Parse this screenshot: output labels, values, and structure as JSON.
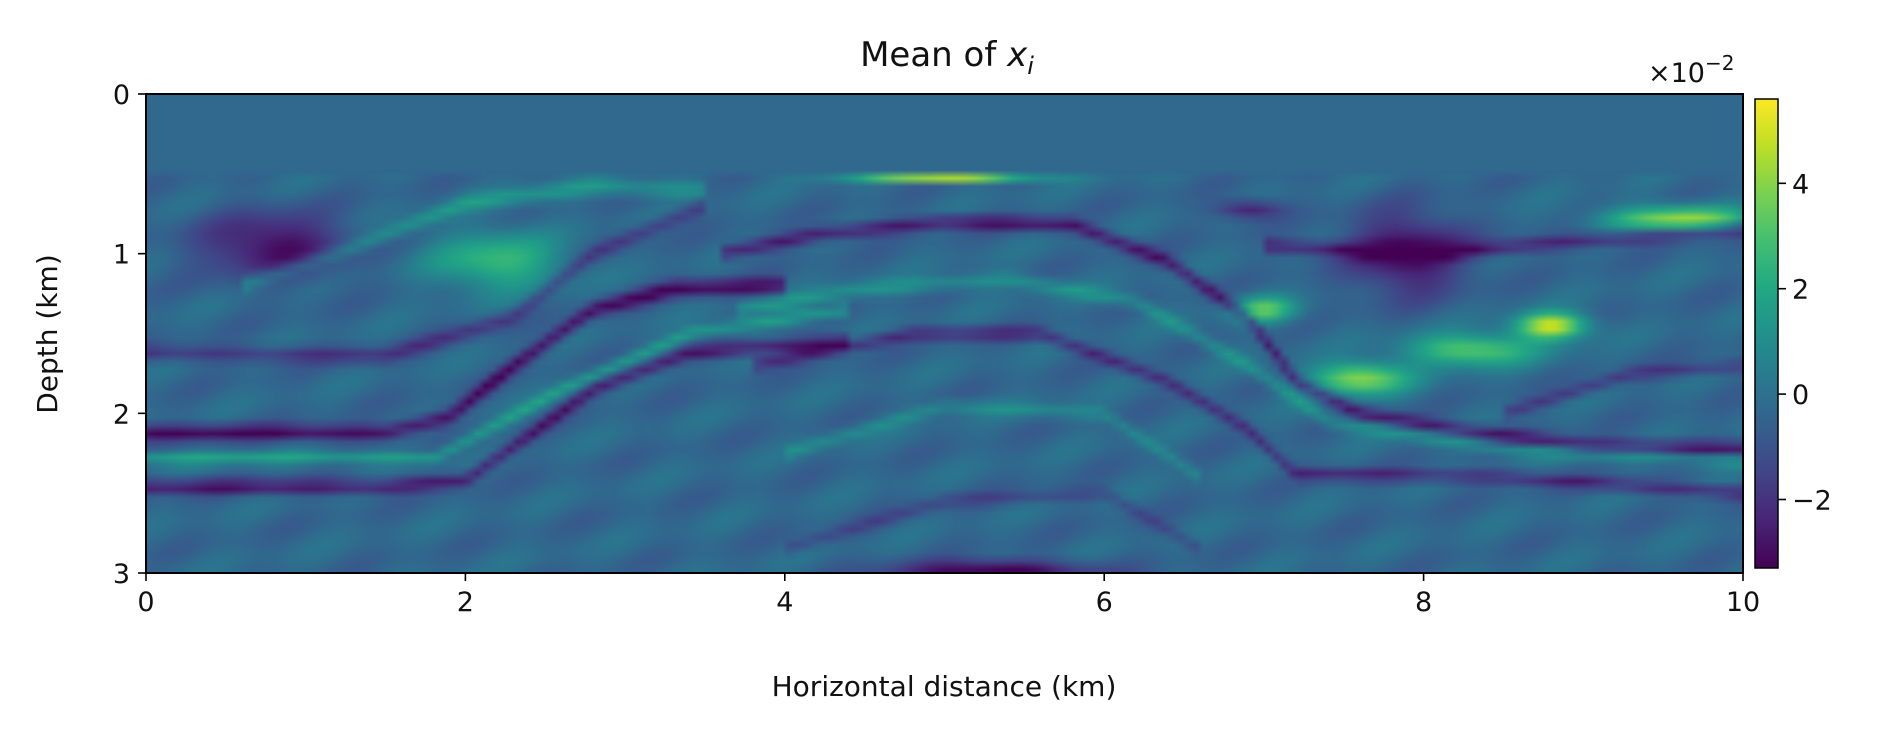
{
  "chart_data": {
    "type": "heatmap",
    "title_prefix": "Mean of ",
    "title_var": "x",
    "title_sub": "i",
    "xlabel": "Horizontal distance (km)",
    "ylabel": "Depth (km)",
    "xlim": [
      0,
      10
    ],
    "ylim": [
      0,
      3
    ],
    "y_inverted": true,
    "x_ticks": [
      {
        "value": 0,
        "label": "0"
      },
      {
        "value": 2,
        "label": "2"
      },
      {
        "value": 4,
        "label": "4"
      },
      {
        "value": 6,
        "label": "6"
      },
      {
        "value": 8,
        "label": "8"
      },
      {
        "value": 10,
        "label": "10"
      }
    ],
    "y_ticks": [
      {
        "value": 0,
        "label": "0"
      },
      {
        "value": 1,
        "label": "1"
      },
      {
        "value": 2,
        "label": "2"
      },
      {
        "value": 3,
        "label": "3"
      }
    ],
    "colorbar": {
      "colormap": "viridis",
      "range": [
        -3.3,
        5.6
      ],
      "scale_base": "×10",
      "scale_exp": "−2",
      "ticks": [
        {
          "value": 4,
          "label": "4"
        },
        {
          "value": 2,
          "label": "2"
        },
        {
          "value": 0,
          "label": "0"
        },
        {
          "value": -2,
          "label": "−2"
        }
      ]
    },
    "background_value": -0.3,
    "water_depth": 0.5,
    "reflectors": [
      {
        "name": "R1",
        "points": [
          [
            0,
            1.62
          ],
          [
            1.5,
            1.64
          ],
          [
            2.3,
            1.4
          ],
          [
            2.8,
            1.0
          ],
          [
            3.5,
            0.7
          ]
        ],
        "amp": -1.6,
        "width": 0.05
      },
      {
        "name": "R2",
        "points": [
          [
            0,
            2.12
          ],
          [
            1.5,
            2.12
          ],
          [
            1.9,
            2.02
          ],
          [
            2.3,
            1.7
          ],
          [
            2.8,
            1.35
          ],
          [
            3.3,
            1.22
          ],
          [
            4.0,
            1.2
          ]
        ],
        "amp": -2.8,
        "width": 0.05
      },
      {
        "name": "R3",
        "points": [
          [
            0,
            2.46
          ],
          [
            1.5,
            2.46
          ],
          [
            2.0,
            2.42
          ],
          [
            2.8,
            1.85
          ],
          [
            3.4,
            1.62
          ],
          [
            4.4,
            1.55
          ]
        ],
        "amp": -2.5,
        "width": 0.045
      },
      {
        "name": "R4",
        "points": [
          [
            0,
            2.28
          ],
          [
            1.8,
            2.28
          ],
          [
            2.6,
            1.85
          ],
          [
            3.4,
            1.5
          ],
          [
            4.4,
            1.35
          ]
        ],
        "amp": 2.0,
        "width": 0.04
      },
      {
        "name": "R5",
        "points": [
          [
            3.6,
            1.0
          ],
          [
            4.2,
            0.88
          ],
          [
            5.0,
            0.8
          ],
          [
            5.8,
            0.82
          ],
          [
            6.4,
            1.05
          ],
          [
            6.9,
            1.4
          ],
          [
            7.2,
            1.8
          ],
          [
            7.6,
            2.0
          ],
          [
            8.2,
            2.1
          ],
          [
            9.0,
            2.2
          ],
          [
            10,
            2.22
          ]
        ],
        "amp": -2.5,
        "width": 0.045
      },
      {
        "name": "R6",
        "points": [
          [
            3.7,
            1.35
          ],
          [
            4.5,
            1.22
          ],
          [
            5.4,
            1.16
          ],
          [
            6.2,
            1.3
          ],
          [
            6.9,
            1.7
          ],
          [
            7.4,
            2.05
          ],
          [
            8.5,
            2.22
          ],
          [
            10,
            2.3
          ]
        ],
        "amp": 1.5,
        "width": 0.045
      },
      {
        "name": "R7",
        "points": [
          [
            3.8,
            1.7
          ],
          [
            4.8,
            1.5
          ],
          [
            5.6,
            1.5
          ],
          [
            6.4,
            1.8
          ],
          [
            6.9,
            2.1
          ],
          [
            7.2,
            2.38
          ],
          [
            8.5,
            2.4
          ],
          [
            10,
            2.5
          ]
        ],
        "amp": -2.0,
        "width": 0.04
      },
      {
        "name": "R8",
        "points": [
          [
            4.0,
            2.25
          ],
          [
            5.0,
            1.95
          ],
          [
            6.0,
            2.0
          ],
          [
            6.6,
            2.4
          ]
        ],
        "amp": 1.2,
        "width": 0.04
      },
      {
        "name": "R9",
        "points": [
          [
            4.0,
            2.85
          ],
          [
            5.0,
            2.55
          ],
          [
            6.0,
            2.5
          ],
          [
            6.6,
            2.85
          ]
        ],
        "amp": -1.1,
        "width": 0.04
      },
      {
        "name": "R10",
        "points": [
          [
            0.6,
            1.2
          ],
          [
            1.2,
            1.0
          ],
          [
            2.0,
            0.68
          ],
          [
            2.8,
            0.58
          ],
          [
            3.5,
            0.6
          ]
        ],
        "amp": 1.6,
        "width": 0.05
      },
      {
        "name": "R11",
        "points": [
          [
            7.0,
            0.95
          ],
          [
            8.0,
            1.0
          ],
          [
            9.0,
            0.92
          ],
          [
            10,
            0.85
          ]
        ],
        "amp": -2.2,
        "width": 0.045
      },
      {
        "name": "R12",
        "points": [
          [
            8.5,
            2.0
          ],
          [
            9.3,
            1.75
          ],
          [
            10,
            1.7
          ]
        ],
        "amp": -1.6,
        "width": 0.04
      }
    ],
    "blobs": [
      {
        "cx": 0.8,
        "cy": 0.95,
        "rx": 0.45,
        "ry": 0.2,
        "amp": -2.8
      },
      {
        "cx": 2.2,
        "cy": 1.05,
        "rx": 0.4,
        "ry": 0.18,
        "amp": 3.0
      },
      {
        "cx": 5.0,
        "cy": 0.52,
        "rx": 0.55,
        "ry": 0.025,
        "amp": 5.2
      },
      {
        "cx": 5.3,
        "cy": 2.98,
        "rx": 0.6,
        "ry": 0.06,
        "amp": -3.3
      },
      {
        "cx": 7.9,
        "cy": 1.0,
        "rx": 0.35,
        "ry": 0.25,
        "amp": -3.0
      },
      {
        "cx": 7.0,
        "cy": 1.35,
        "rx": 0.2,
        "ry": 0.08,
        "amp": 3.5
      },
      {
        "cx": 7.6,
        "cy": 1.78,
        "rx": 0.3,
        "ry": 0.1,
        "amp": 4.5
      },
      {
        "cx": 8.3,
        "cy": 1.6,
        "rx": 0.4,
        "ry": 0.1,
        "amp": 3.8
      },
      {
        "cx": 8.8,
        "cy": 1.45,
        "rx": 0.22,
        "ry": 0.08,
        "amp": 5.5
      },
      {
        "cx": 9.6,
        "cy": 0.78,
        "rx": 0.45,
        "ry": 0.08,
        "amp": 4.5
      },
      {
        "cx": 6.9,
        "cy": 0.72,
        "rx": 0.2,
        "ry": 0.06,
        "amp": -2.5
      }
    ]
  }
}
